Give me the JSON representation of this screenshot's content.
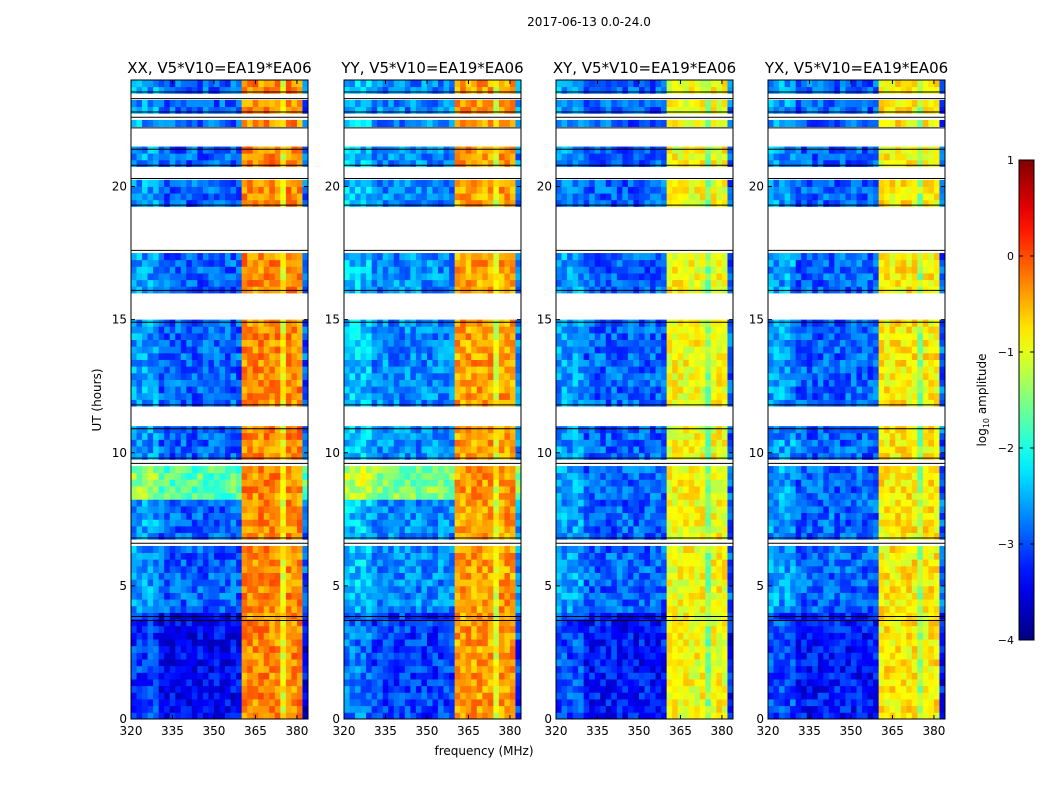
{
  "chart_data": {
    "type": "heatmap",
    "suptitle": "2017-06-13 0.0-24.0",
    "xlabel": "frequency (MHz)",
    "ylabel": "UT (hours)",
    "xlim": [
      320,
      384
    ],
    "ylim": [
      0,
      24
    ],
    "xticks": [
      320,
      335,
      350,
      365,
      380
    ],
    "yticks": [
      0,
      5,
      10,
      15,
      20
    ],
    "colorbar": {
      "label": "log10 amplitude",
      "label_main": "log",
      "label_sub": "10",
      "label_rest": " amplitude",
      "colormap": "jet",
      "range": [
        -4,
        1
      ],
      "ticks": [
        1,
        0,
        -1,
        -2,
        -3,
        -4
      ]
    },
    "flagged_time_ranges_hours": [
      [
        23.3,
        23.55
      ],
      [
        22.6,
        22.8
      ],
      [
        21.4,
        22.2
      ],
      [
        20.3,
        20.8
      ],
      [
        17.6,
        19.3
      ],
      [
        14.9,
        16.1
      ],
      [
        10.9,
        11.8
      ],
      [
        9.6,
        9.8
      ],
      [
        6.6,
        6.8
      ],
      [
        3.7,
        3.85
      ]
    ],
    "panels": [
      {
        "title": "XX, V5*V10=EA19*EA06",
        "band_low_level": -2.9,
        "band_high_level": -0.3,
        "early_low_level": -3.4
      },
      {
        "title": "YY, V5*V10=EA19*EA06",
        "band_low_level": -2.7,
        "band_high_level": -0.4,
        "early_low_level": -3.1
      },
      {
        "title": "XY, V5*V10=EA19*EA06",
        "band_low_level": -2.9,
        "band_high_level": -0.9,
        "early_low_level": -3.3
      },
      {
        "title": "YX, V5*V10=EA19*EA06",
        "band_low_level": -2.9,
        "band_high_level": -0.8,
        "early_low_level": -3.3
      }
    ],
    "bright_band_mhz": [
      361,
      382
    ],
    "dim_channels_mhz": [
      366,
      370,
      375,
      378
    ]
  }
}
